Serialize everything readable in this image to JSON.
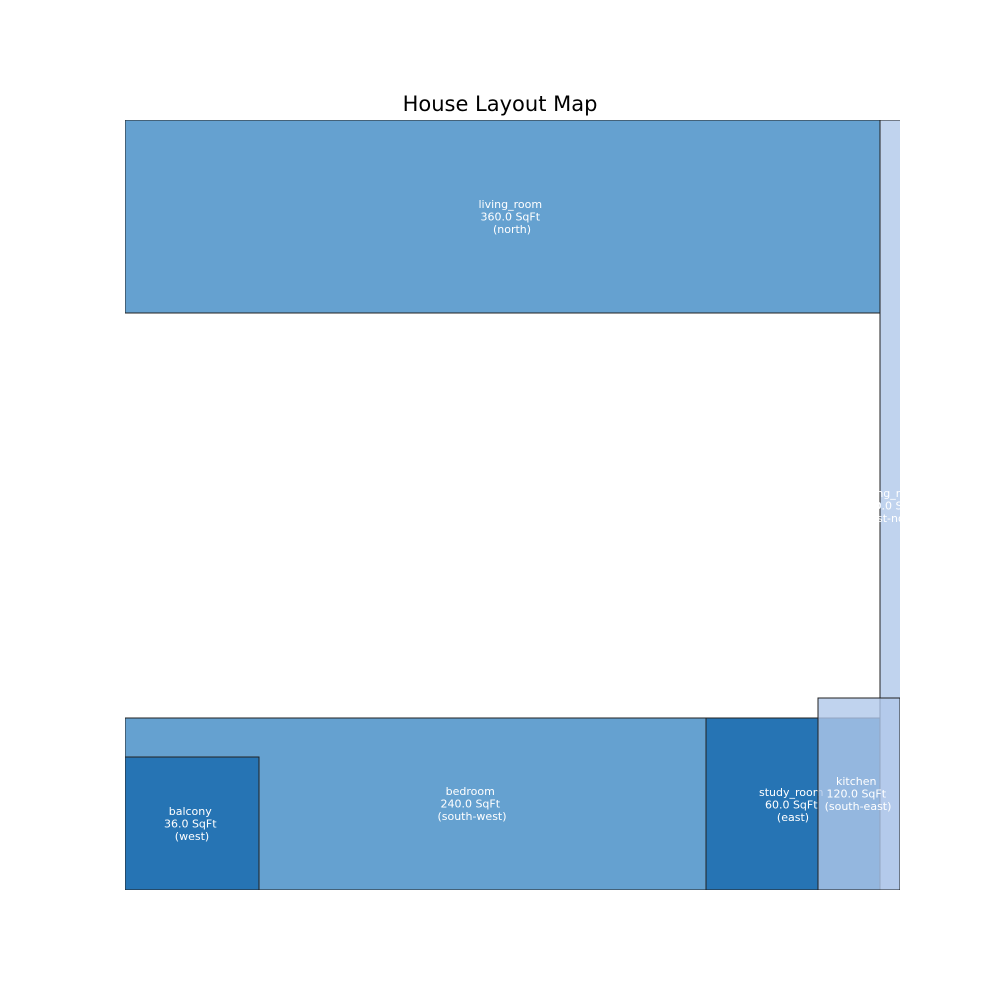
{
  "title": "House Layout Map",
  "colors": {
    "medium": "#4a90c8",
    "dark": "#1f6fb0",
    "pale": "#b0c8ea",
    "border": "#222222",
    "label": "#ffffff"
  },
  "rooms": [
    {
      "key": "living_room",
      "name": "living_room",
      "area": "360.0 SqFt",
      "direction": "(north)",
      "color": "#4a90c8",
      "opacity": 0.85
    },
    {
      "key": "dining_room",
      "name": "dining_room",
      "area": "120.0 SqFt",
      "direction": "(east-north)",
      "color": "#b0c8ea",
      "opacity": 0.8
    },
    {
      "key": "bedroom",
      "name": "bedroom",
      "area": "240.0 SqFt",
      "direction": "(south-west)",
      "color": "#4a90c8",
      "opacity": 0.85
    },
    {
      "key": "balcony",
      "name": "balcony",
      "area": "36.0 SqFt",
      "direction": "(west)",
      "color": "#1f6fb0",
      "opacity": 0.9
    },
    {
      "key": "study_room",
      "name": "study_room",
      "area": "60.0 SqFt",
      "direction": "(east)",
      "color": "#1f6fb0",
      "opacity": 0.9
    },
    {
      "key": "kitchen",
      "name": "kitchen",
      "area": "120.0 SqFt",
      "direction": "(south-east)",
      "color": "#b0c8ea",
      "opacity": 0.8
    }
  ]
}
